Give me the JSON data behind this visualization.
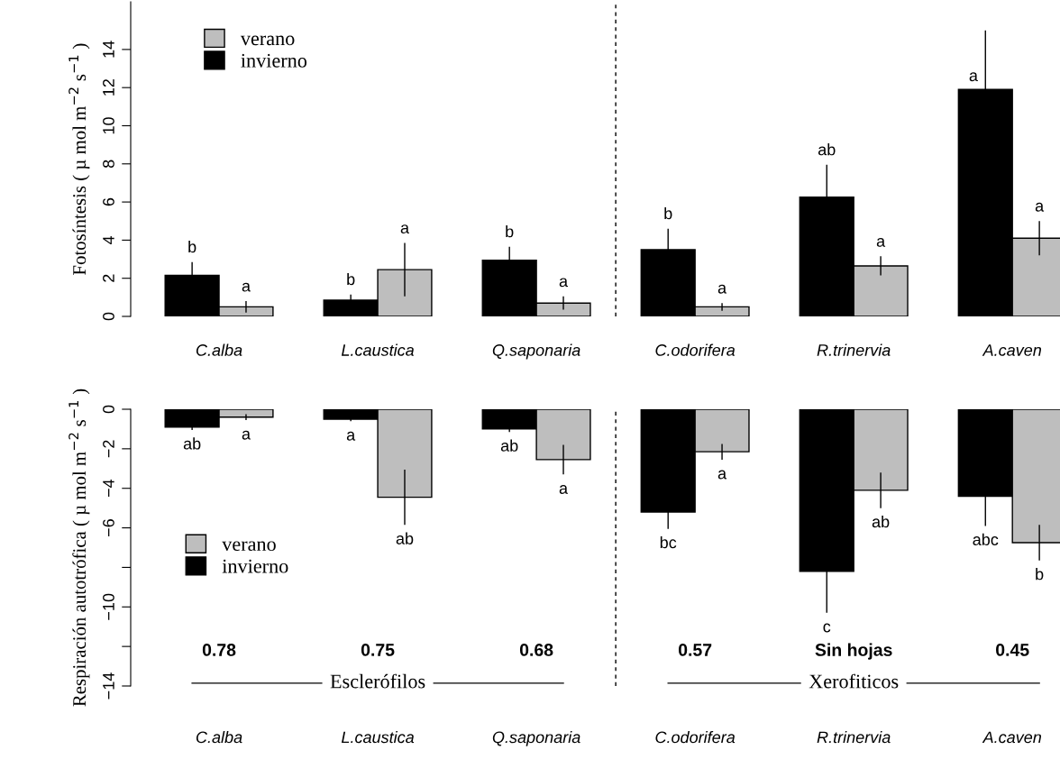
{
  "chart_data": [
    {
      "type": "bar",
      "ylabel": "Fotosíntesis ( µ mol m$^{−2}$ s$^{−1}$ )",
      "categories": [
        "C.alba",
        "L.caustica",
        "Q.saponaria",
        "C.odorifera",
        "R.trinervia",
        "A.caven"
      ],
      "series": [
        {
          "name": "invierno",
          "color": "#000000",
          "values": [
            2.15,
            0.85,
            2.95,
            3.5,
            6.25,
            11.9
          ],
          "errors": [
            0.7,
            0.3,
            0.7,
            1.1,
            1.7,
            3.1
          ],
          "value_labels": [
            "b",
            "b",
            "b",
            "b",
            "ab",
            "a"
          ]
        },
        {
          "name": "verano",
          "color": "#bebebe",
          "values": [
            0.5,
            2.45,
            0.7,
            0.5,
            2.65,
            4.1
          ],
          "errors": [
            0.3,
            1.4,
            0.35,
            0.2,
            0.5,
            0.9
          ],
          "value_labels": [
            "a",
            "a",
            "a",
            "a",
            "a",
            "a"
          ]
        }
      ],
      "ylim": [
        0,
        16.5
      ],
      "yticks": [
        0,
        2,
        4,
        6,
        8,
        10,
        12,
        14
      ],
      "legend": "top left",
      "grid": false
    },
    {
      "type": "bar",
      "ylabel": "Respiración autotrófica ( µ mol m$^{−2}$ s$^{−1}$ )",
      "categories": [
        "C.alba",
        "L.caustica",
        "Q.saponaria",
        "C.odorifera",
        "R.trinervia",
        "A.caven"
      ],
      "series": [
        {
          "name": "invierno",
          "color": "#000000",
          "values": [
            -0.9,
            -0.5,
            -1.0,
            -5.2,
            -8.2,
            -4.4
          ],
          "errors": [
            0.15,
            0.1,
            0.15,
            0.85,
            2.1,
            1.5
          ],
          "value_labels": [
            "ab",
            "a",
            "ab",
            "bc",
            "c",
            "abc"
          ]
        },
        {
          "name": "verano",
          "color": "#bebebe",
          "values": [
            -0.4,
            -4.45,
            -2.55,
            -2.15,
            -4.1,
            -6.75
          ],
          "errors": [
            0.15,
            1.4,
            0.75,
            0.4,
            0.9,
            0.9
          ],
          "value_labels": [
            "a",
            "ab",
            "a",
            "a",
            "ab",
            "b"
          ]
        }
      ],
      "ylim": [
        -14,
        0
      ],
      "yticks": [
        0,
        -2,
        -4,
        -6,
        {
          "value": -8,
          "label": null
        },
        -10,
        {
          "value": -12,
          "label": null
        },
        -14
      ],
      "legend": "left",
      "grid": false,
      "annotations": [
        "0.78",
        "0.75",
        "0.68",
        "0.57",
        "Sin hojas",
        "0.45",
        "Esclerófilos",
        "Xerofiticos"
      ]
    }
  ]
}
